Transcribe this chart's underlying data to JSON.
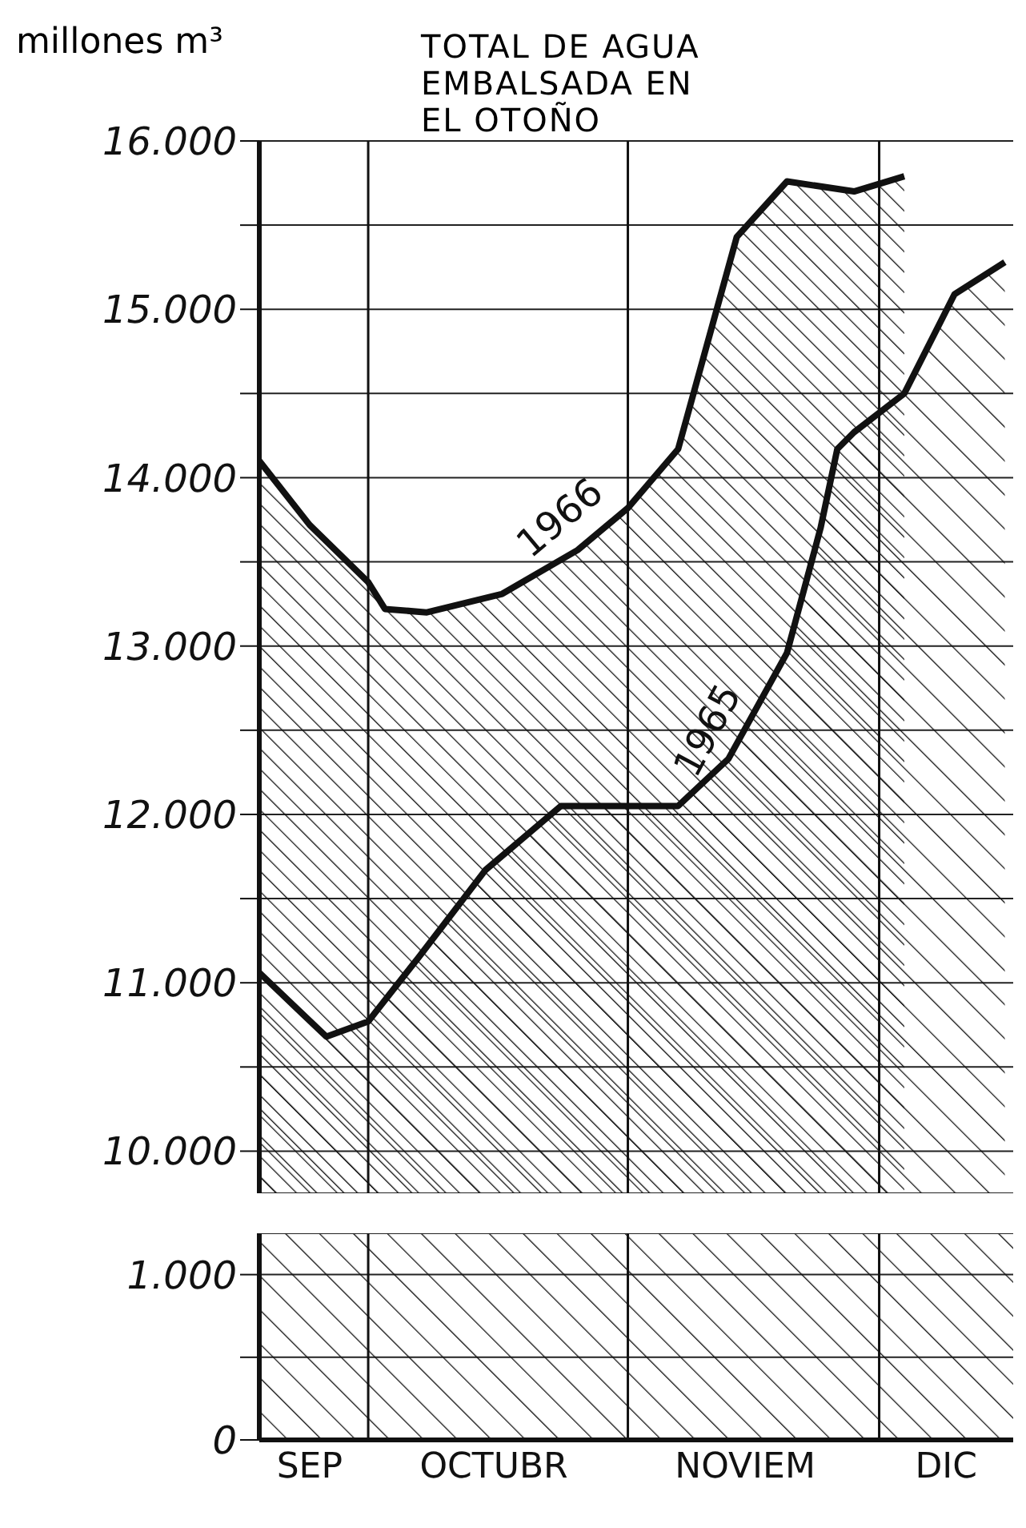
{
  "chart_data": [
    {
      "type": "area",
      "title": "TOTAL DE AGUA EMBALSADA EN EL OTOÑO",
      "ylabel": "millones m³",
      "series": [
        {
          "name": "1966",
          "color": "#111111",
          "x": [
            "--09-18",
            "--09-24",
            "--10-01",
            "--10-03",
            "--10-08",
            "--10-17",
            "--10-26",
            "--11-01",
            "--11-07",
            "--11-14",
            "--11-20",
            "--11-28",
            "--12-04"
          ],
          "values": [
            14100,
            13720,
            13380,
            13220,
            13200,
            13310,
            13570,
            13820,
            14170,
            15430,
            15760,
            15700,
            15790
          ]
        },
        {
          "name": "1965",
          "color": "#111111",
          "x": [
            "--09-18",
            "--09-26",
            "--10-01",
            "--10-07",
            "--10-15",
            "--10-24",
            "--11-07",
            "--11-13",
            "--11-20",
            "--11-24",
            "--11-26",
            "--11-28",
            "--12-04",
            "--12-10",
            "--12-16"
          ],
          "values": [
            11060,
            10680,
            10770,
            11150,
            11670,
            12050,
            12050,
            12330,
            12960,
            13700,
            14170,
            14270,
            14500,
            15090,
            15280
          ]
        }
      ],
      "xlim": [
        "--09-18",
        "--12-17"
      ],
      "ylim": [
        9750,
        16000
      ],
      "yticks": [
        {
          "value": 10000,
          "label": "10.000"
        },
        {
          "value": 10500,
          "label": null
        },
        {
          "value": 11000,
          "label": "11.000"
        },
        {
          "value": 11500,
          "label": null
        },
        {
          "value": 12000,
          "label": "12.000"
        },
        {
          "value": 12500,
          "label": null
        },
        {
          "value": 13000,
          "label": "13.000"
        },
        {
          "value": 13500,
          "label": null
        },
        {
          "value": 14000,
          "label": "14.000"
        },
        {
          "value": 14500,
          "label": null
        },
        {
          "value": 15000,
          "label": "15.000"
        },
        {
          "value": 15500,
          "label": null
        },
        {
          "value": 16000,
          "label": "16.000"
        }
      ],
      "ref_lines": [
        {
          "axis": "x",
          "value": "--10-01"
        },
        {
          "axis": "x",
          "value": "--11-01"
        },
        {
          "axis": "x",
          "value": "--12-01"
        }
      ],
      "tick_labels": "y",
      "grid": "y"
    },
    {
      "type": "area",
      "xlim": [
        "--09-18",
        "--12-17"
      ],
      "xticks": [
        {
          "value": "--09-24",
          "label": "SEP"
        },
        {
          "value": "--10-16",
          "label": "OCTUBR"
        },
        {
          "value": "--11-15",
          "label": "NOVIEM"
        },
        {
          "value": "--12-09",
          "label": "DIC"
        }
      ],
      "ylim": [
        0,
        1250
      ],
      "yticks": [
        0,
        {
          "value": 500,
          "label": null
        },
        {
          "value": 1000,
          "label": "1.000"
        }
      ],
      "bands": [
        {
          "axis": "y",
          "from": 0,
          "to": 1250,
          "color": "#111111"
        }
      ],
      "ref_lines": [
        {
          "axis": "x",
          "value": "--10-01"
        },
        {
          "axis": "x",
          "value": "--11-01"
        },
        {
          "axis": "x",
          "value": "--12-01"
        }
      ],
      "grid": "y"
    }
  ]
}
